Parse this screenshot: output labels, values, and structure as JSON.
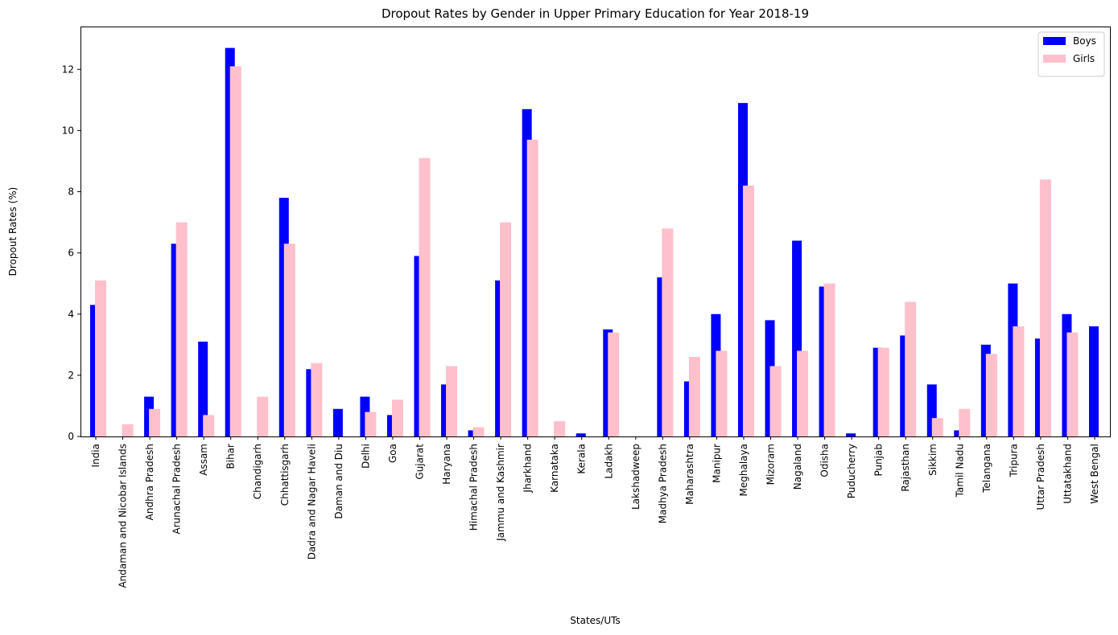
{
  "chart_data": {
    "type": "bar",
    "title": "Dropout Rates by Gender in Upper Primary Education for Year 2018-19",
    "xlabel": "States/UTs",
    "ylabel": "Dropout Rates (%)",
    "ylim": [
      0,
      13.4
    ],
    "yticks": [
      0,
      2,
      4,
      6,
      8,
      10,
      12
    ],
    "grid": false,
    "legend_position": "top-right",
    "categories": [
      "India",
      "Andaman and Nicobar Islands",
      "Andhra Pradesh",
      "Arunachal Pradesh",
      "Assam",
      "Bihar",
      "Chandigarh",
      "Chhattisgarh",
      "Dadra and Nagar Haveli",
      "Daman and Diu",
      "Delhi",
      "Goa",
      "Gujarat",
      "Haryana",
      "Himachal Pradesh",
      "Jammu and Kashmir",
      "Jharkhand",
      "Karnataka",
      "Kerala",
      "Ladakh",
      "Lakshadweep",
      "Madhya Pradesh",
      "Maharashtra",
      "Manipur",
      "Meghalaya",
      "Mizoram",
      "Nagaland",
      "Odisha",
      "Puducherry",
      "Punjab",
      "Rajasthan",
      "Sikkim",
      "Tamil Nadu",
      "Telangana",
      "Tripura",
      "Uttar Pradesh",
      "Uttatakhand",
      "West Bengal"
    ],
    "series": [
      {
        "name": "Boys",
        "color": "#0000ff",
        "values": [
          4.3,
          0,
          1.3,
          6.3,
          3.1,
          12.7,
          0,
          7.8,
          2.2,
          0.9,
          1.3,
          0.7,
          5.9,
          1.7,
          0.2,
          5.1,
          10.7,
          0,
          0.1,
          3.5,
          0,
          5.2,
          1.8,
          4.0,
          10.9,
          3.8,
          6.4,
          4.9,
          0.1,
          2.9,
          3.3,
          1.7,
          0.2,
          3.0,
          5.0,
          3.2,
          4.0,
          3.6
        ]
      },
      {
        "name": "Girls",
        "color": "#ffc0cb",
        "values": [
          5.1,
          0.4,
          0.9,
          7.0,
          0.7,
          12.1,
          1.3,
          6.3,
          2.4,
          0,
          0.8,
          1.2,
          9.1,
          2.3,
          0.3,
          7.0,
          9.7,
          0.5,
          0,
          3.4,
          0,
          6.8,
          2.6,
          2.8,
          8.2,
          2.3,
          2.8,
          5.0,
          0,
          2.9,
          4.4,
          0.6,
          0.9,
          2.7,
          3.6,
          8.4,
          3.4,
          0
        ]
      }
    ]
  }
}
